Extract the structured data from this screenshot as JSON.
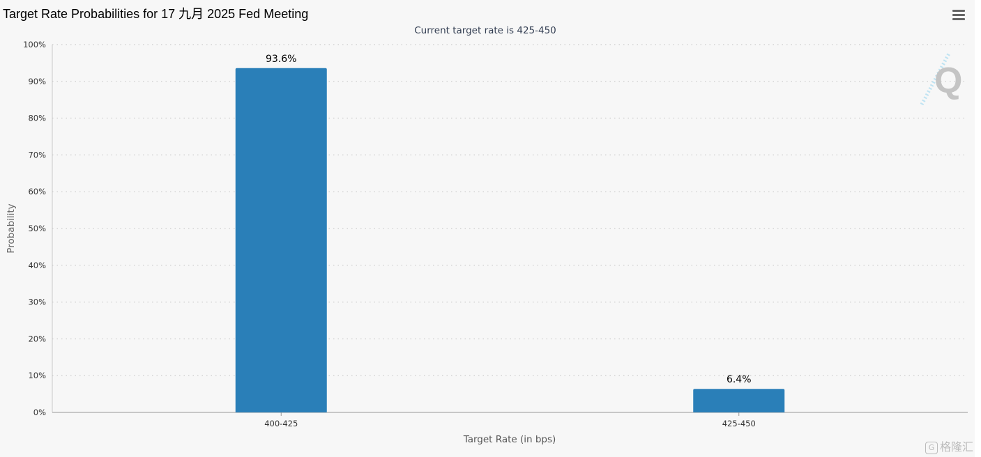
{
  "header": {
    "title": "Target Rate Probabilities for 17 九月 2025 Fed Meeting",
    "menu_icon": "hamburger-menu-icon"
  },
  "watermark": {
    "icon": "quikstrike-q-logo",
    "letter": "Q",
    "footer_brand": "格隆汇"
  },
  "chart_data": {
    "type": "bar",
    "subtitle": "Current target rate is 425-450",
    "xlabel": "Target Rate (in bps)",
    "ylabel": "Probability",
    "categories": [
      "400-425",
      "425-450"
    ],
    "values": [
      93.6,
      6.4
    ],
    "data_labels": [
      "93.6%",
      "6.4%"
    ],
    "ylim": [
      0,
      100
    ],
    "yticks": [
      "0%",
      "10%",
      "20%",
      "30%",
      "40%",
      "50%",
      "60%",
      "70%",
      "80%",
      "90%",
      "100%"
    ],
    "grid": true,
    "legend": false,
    "bar_color": "#2a7fb8"
  }
}
